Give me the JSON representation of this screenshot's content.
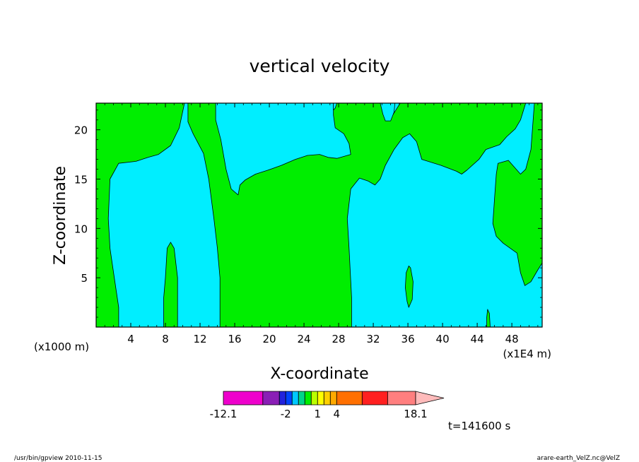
{
  "chart_data": {
    "type": "contour",
    "title": "vertical velocity",
    "xlabel": "X-coordinate",
    "ylabel": "Z-coordinate",
    "x_unit_left": "(x1000 m)",
    "x_unit_right": "(x1E4 m)",
    "xlim": [
      0,
      51.5
    ],
    "ylim": [
      0,
      22.7
    ],
    "x_ticks": [
      4,
      8,
      12,
      16,
      20,
      24,
      28,
      32,
      36,
      40,
      44,
      48
    ],
    "x_tick_labels": [
      "4",
      "8",
      "12",
      "16",
      "20",
      "24",
      "28",
      "32",
      "36",
      "40",
      "44",
      "48"
    ],
    "y_ticks": [
      5,
      10,
      15,
      20
    ],
    "y_tick_labels": [
      "5",
      "10",
      "15",
      "20"
    ],
    "background_fill": {
      "name": "cyan",
      "color": "#00eeff"
    },
    "contour_fill": {
      "name": "green",
      "color": "#00ee00"
    },
    "regions": [
      {
        "name": "left-edge",
        "points": [
          [
            0,
            0
          ],
          [
            2.6,
            0
          ],
          [
            2.6,
            2
          ],
          [
            2.1,
            5
          ],
          [
            1.6,
            8
          ],
          [
            1.4,
            11
          ],
          [
            1.6,
            15
          ],
          [
            2.6,
            16.6
          ],
          [
            4.6,
            16.8
          ],
          [
            6,
            17.2
          ],
          [
            7.2,
            17.5
          ],
          [
            8.6,
            18.4
          ],
          [
            9.6,
            20.2
          ],
          [
            10.2,
            22.7
          ],
          [
            0,
            22.7
          ]
        ]
      },
      {
        "name": "mid-band",
        "points": [
          [
            10.6,
            22.7
          ],
          [
            10.6,
            20.8
          ],
          [
            11.2,
            19.6
          ],
          [
            12.4,
            17.6
          ],
          [
            13,
            15
          ],
          [
            13.6,
            11
          ],
          [
            14,
            8
          ],
          [
            14.3,
            5
          ],
          [
            14.3,
            0
          ],
          [
            29.5,
            0
          ],
          [
            29.5,
            3
          ],
          [
            29.2,
            8
          ],
          [
            29,
            11
          ],
          [
            29.4,
            14
          ],
          [
            30.4,
            15.1
          ],
          [
            31.4,
            14.8
          ],
          [
            32.2,
            14.4
          ],
          [
            32.8,
            15
          ],
          [
            33.4,
            16.4
          ],
          [
            34.4,
            18
          ],
          [
            35.4,
            19.2
          ],
          [
            36.2,
            19.6
          ],
          [
            37,
            18.8
          ],
          [
            37.6,
            17
          ],
          [
            39.8,
            16.4
          ],
          [
            41.6,
            15.8
          ],
          [
            42.2,
            15.5
          ],
          [
            42.8,
            15.9
          ],
          [
            44.2,
            17
          ],
          [
            45,
            18
          ],
          [
            46.6,
            18.5
          ],
          [
            47.4,
            19.3
          ],
          [
            48.4,
            20.1
          ],
          [
            49,
            21
          ],
          [
            49.6,
            22.7
          ],
          [
            35.1,
            22.7
          ],
          [
            33.9,
            21
          ],
          [
            33.5,
            22.7
          ],
          [
            27.4,
            22.7
          ],
          [
            27.4,
            21.5
          ],
          [
            27.6,
            20.2
          ],
          [
            28.6,
            19.6
          ],
          [
            29.2,
            18.6
          ],
          [
            29.4,
            17.5
          ],
          [
            27.8,
            17.1
          ],
          [
            26.8,
            17.2
          ],
          [
            25.8,
            17.5
          ],
          [
            24.4,
            17.4
          ],
          [
            23,
            17
          ],
          [
            21.4,
            16.4
          ],
          [
            19.8,
            15.9
          ],
          [
            18.4,
            15.5
          ],
          [
            17.2,
            14.9
          ],
          [
            16.6,
            14.4
          ],
          [
            16.4,
            13.4
          ],
          [
            15.6,
            14
          ],
          [
            15,
            16
          ],
          [
            14.4,
            19
          ],
          [
            13.8,
            21
          ],
          [
            13.8,
            22.7
          ]
        ]
      },
      {
        "name": "tongue-x9",
        "points": [
          [
            7.8,
            0
          ],
          [
            9.4,
            0
          ],
          [
            9.4,
            5
          ],
          [
            9,
            8
          ],
          [
            8.6,
            8.6
          ],
          [
            8.2,
            8
          ],
          [
            8,
            5
          ],
          [
            7.8,
            3
          ]
        ]
      },
      {
        "name": "blob-x36",
        "points": [
          [
            36.1,
            2
          ],
          [
            36.5,
            2.8
          ],
          [
            36.6,
            4.6
          ],
          [
            36.3,
            6
          ],
          [
            36.1,
            6.2
          ],
          [
            35.8,
            5.5
          ],
          [
            35.7,
            4
          ],
          [
            35.9,
            2.6
          ]
        ]
      },
      {
        "name": "thin-x45",
        "points": [
          [
            45.1,
            0
          ],
          [
            45.5,
            0
          ],
          [
            45.4,
            1.4
          ],
          [
            45.2,
            1.8
          ],
          [
            45.1,
            1
          ]
        ]
      },
      {
        "name": "right-edge",
        "points": [
          [
            51.5,
            22.7
          ],
          [
            51.5,
            6.5
          ],
          [
            51,
            5.8
          ],
          [
            50.2,
            4.6
          ],
          [
            49.5,
            4.2
          ],
          [
            49,
            5.5
          ],
          [
            48.6,
            7.5
          ],
          [
            47,
            8.5
          ],
          [
            46.2,
            9.2
          ],
          [
            45.8,
            10.5
          ],
          [
            46,
            13
          ],
          [
            46.2,
            15.5
          ],
          [
            46.4,
            16.6
          ],
          [
            47.6,
            16.9
          ],
          [
            48.2,
            16.3
          ],
          [
            49,
            15.5
          ],
          [
            49.6,
            16
          ],
          [
            50.2,
            18
          ],
          [
            50.6,
            22.7
          ]
        ]
      },
      {
        "name": "cyan-pocket-x34",
        "fill": "background",
        "points": [
          [
            32.8,
            22.7
          ],
          [
            33.1,
            21.6
          ],
          [
            33.4,
            20.9
          ],
          [
            34,
            20.9
          ],
          [
            34.4,
            21.8
          ],
          [
            34.5,
            22.7
          ]
        ]
      },
      {
        "name": "cyan-notch-x27",
        "fill": "background",
        "points": [
          [
            27.4,
            22.7
          ],
          [
            27.4,
            22
          ],
          [
            27.6,
            22.2
          ],
          [
            27.8,
            22.7
          ]
        ]
      }
    ],
    "colorbar": {
      "segments": [
        "#ee00cc",
        "#8a1fb6",
        "#2222dd",
        "#0044ff",
        "#00c8ff",
        "#00d48a",
        "#00ee00",
        "#bbff00",
        "#ffff00",
        "#ffd000",
        "#ffaa00",
        "#ff7000",
        "#ff2020",
        "#ff7f7f"
      ],
      "segment_weights": [
        1.55,
        0.65,
        0.25,
        0.25,
        0.25,
        0.25,
        0.25,
        0.25,
        0.25,
        0.25,
        0.25,
        1.0,
        1.0,
        1.1
      ],
      "arrow_color": "#ffbbbb",
      "tick_labels": [
        "-12.1",
        "-2",
        "1",
        "4",
        "18.1"
      ],
      "tick_label_segment_boundaries": [
        0,
        3,
        8,
        11,
        14
      ]
    },
    "time_label": "t=141600 s",
    "footer_left": "/usr/bin/gpview   2010-11-15",
    "footer_right": "arare-earth_VelZ.nc@VelZ"
  }
}
